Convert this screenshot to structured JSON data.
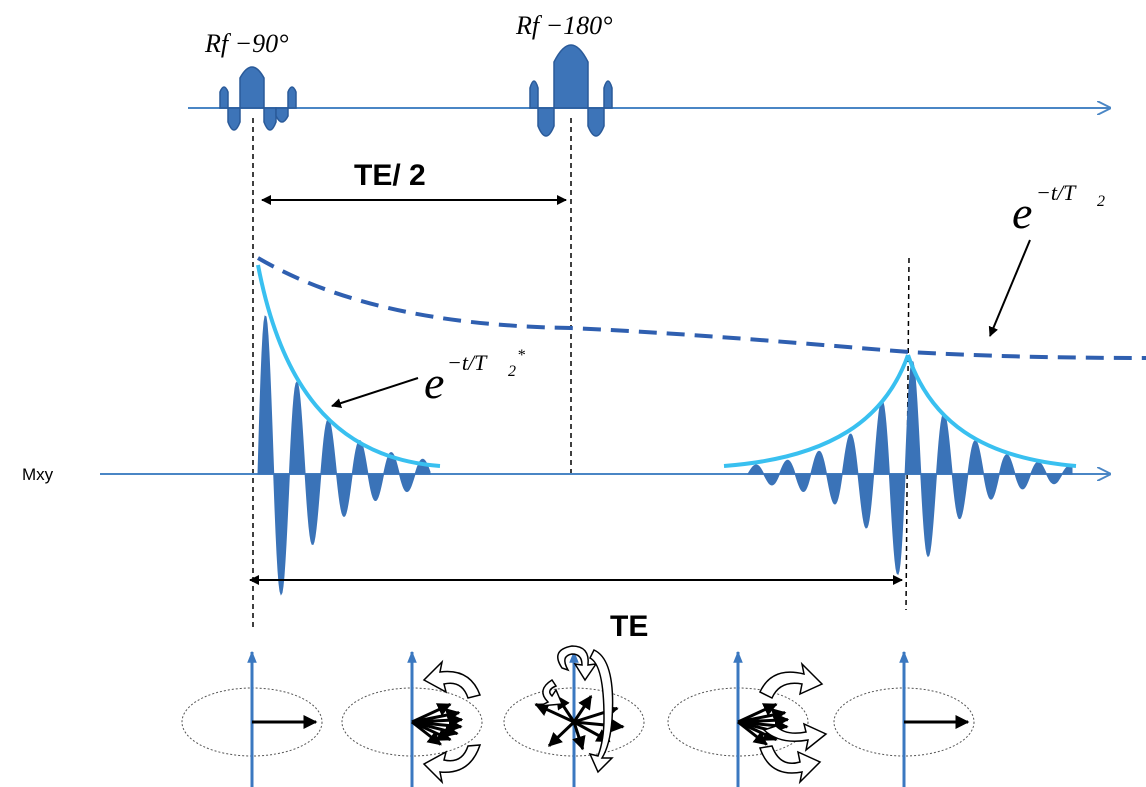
{
  "labels": {
    "rf90": "Rf −90°",
    "rf180": "Rf −180°",
    "te_half": "TE/ 2",
    "te": "TE",
    "mxy": "Mxy",
    "t2_base": "e",
    "t2_exp": "−t/T",
    "t2_sub": "2",
    "t2star_base": "e",
    "t2star_exp": "−t/T",
    "t2star_sub": "2",
    "t2star_sup": "*"
  },
  "colors": {
    "axis": "#4a86c5",
    "pulse": "#3a6fb0",
    "signal": "#3a73b8",
    "envelope": "#39c0f0",
    "t2_dashed": "#2f5fb0",
    "arrow": "#000000"
  },
  "icons": [
    "rf-pulse-icon",
    "spin-arrow-icon",
    "rotation-arrow-icon",
    "ellipse-icon"
  ]
}
